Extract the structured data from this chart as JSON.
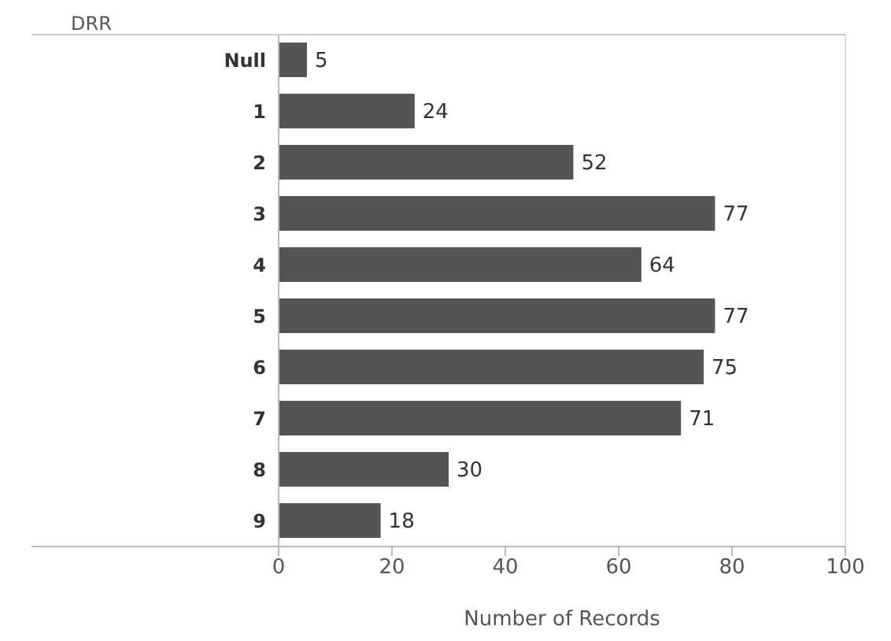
{
  "chart_data": {
    "type": "bar",
    "orientation": "horizontal",
    "annotations": [
      "DRR"
    ],
    "xlabel": "Number of Records",
    "categories": [
      "Null",
      "1",
      "2",
      "3",
      "4",
      "5",
      "6",
      "7",
      "8",
      "9"
    ],
    "values": [
      5,
      24,
      52,
      77,
      64,
      77,
      75,
      71,
      30,
      18
    ],
    "color": "#555555",
    "xlim": [
      0,
      100
    ],
    "xticks": [
      0,
      20,
      40,
      60,
      80,
      100
    ],
    "data_labels": true,
    "grid": false,
    "legend": false
  }
}
